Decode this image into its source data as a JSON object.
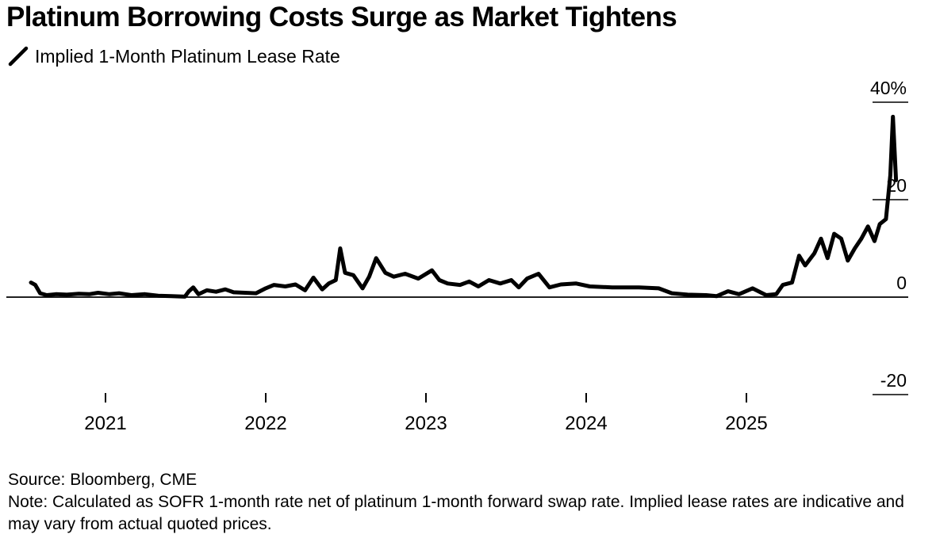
{
  "title": "Platinum Borrowing Costs Surge as Market Tightens",
  "footer": {
    "source": "Source: Bloomberg, CME",
    "note": "Note: Calculated as SOFR 1-month rate net of platinum 1-month forward swap rate. Implied lease rates are indicative and may vary from actual quoted prices."
  },
  "colors": {
    "line": "#000000",
    "axis": "#000000",
    "background": "#ffffff"
  },
  "chart_data": {
    "type": "line",
    "title": "Platinum Borrowing Costs Surge as Market Tightens",
    "series": [
      {
        "name": "Implied 1-Month Platinum Lease Rate",
        "points": [
          [
            "2020-07-15",
            3.0
          ],
          [
            "2020-07-25",
            2.5
          ],
          [
            "2020-08-05",
            0.8
          ],
          [
            "2020-08-20",
            0.4
          ],
          [
            "2020-09-10",
            0.6
          ],
          [
            "2020-10-05",
            0.5
          ],
          [
            "2020-11-01",
            0.7
          ],
          [
            "2020-11-25",
            0.6
          ],
          [
            "2020-12-15",
            0.9
          ],
          [
            "2021-01-10",
            0.6
          ],
          [
            "2021-02-01",
            0.8
          ],
          [
            "2021-03-01",
            0.4
          ],
          [
            "2021-04-01",
            0.6
          ],
          [
            "2021-05-01",
            0.3
          ],
          [
            "2021-06-01",
            0.2
          ],
          [
            "2021-07-01",
            0.1
          ],
          [
            "2021-07-10",
            1.2
          ],
          [
            "2021-07-20",
            2.0
          ],
          [
            "2021-08-01",
            0.6
          ],
          [
            "2021-08-20",
            1.4
          ],
          [
            "2021-09-10",
            1.1
          ],
          [
            "2021-10-01",
            1.6
          ],
          [
            "2021-10-20",
            1.0
          ],
          [
            "2021-11-15",
            0.9
          ],
          [
            "2021-12-10",
            0.8
          ],
          [
            "2022-01-01",
            1.8
          ],
          [
            "2022-01-20",
            2.5
          ],
          [
            "2022-02-15",
            2.2
          ],
          [
            "2022-03-10",
            2.6
          ],
          [
            "2022-04-01",
            1.4
          ],
          [
            "2022-04-20",
            4.0
          ],
          [
            "2022-05-10",
            1.6
          ],
          [
            "2022-05-25",
            2.8
          ],
          [
            "2022-06-10",
            3.5
          ],
          [
            "2022-06-20",
            10.0
          ],
          [
            "2022-07-01",
            5.0
          ],
          [
            "2022-07-20",
            4.5
          ],
          [
            "2022-08-10",
            1.8
          ],
          [
            "2022-08-25",
            4.2
          ],
          [
            "2022-09-10",
            8.0
          ],
          [
            "2022-10-01",
            5.0
          ],
          [
            "2022-10-20",
            4.2
          ],
          [
            "2022-11-15",
            4.8
          ],
          [
            "2022-12-15",
            3.8
          ],
          [
            "2023-01-15",
            5.5
          ],
          [
            "2023-02-01",
            3.5
          ],
          [
            "2023-02-20",
            2.8
          ],
          [
            "2023-03-20",
            2.5
          ],
          [
            "2023-04-10",
            3.2
          ],
          [
            "2023-05-01",
            2.2
          ],
          [
            "2023-05-25",
            3.5
          ],
          [
            "2023-06-20",
            2.8
          ],
          [
            "2023-07-15",
            3.5
          ],
          [
            "2023-08-01",
            2.0
          ],
          [
            "2023-08-20",
            3.8
          ],
          [
            "2023-09-15",
            4.8
          ],
          [
            "2023-10-10",
            2.0
          ],
          [
            "2023-11-05",
            2.6
          ],
          [
            "2023-12-10",
            2.8
          ],
          [
            "2024-01-10",
            2.2
          ],
          [
            "2024-03-01",
            2.0
          ],
          [
            "2024-05-01",
            2.0
          ],
          [
            "2024-06-15",
            1.8
          ],
          [
            "2024-07-15",
            0.8
          ],
          [
            "2024-08-20",
            0.5
          ],
          [
            "2024-10-01",
            0.4
          ],
          [
            "2024-10-25",
            0.2
          ],
          [
            "2024-11-20",
            1.2
          ],
          [
            "2024-12-15",
            0.6
          ],
          [
            "2025-01-15",
            1.8
          ],
          [
            "2025-02-15",
            0.4
          ],
          [
            "2025-03-10",
            0.6
          ],
          [
            "2025-03-25",
            2.5
          ],
          [
            "2025-04-15",
            3.0
          ],
          [
            "2025-05-01",
            8.5
          ],
          [
            "2025-05-15",
            6.5
          ],
          [
            "2025-06-05",
            9.0
          ],
          [
            "2025-06-20",
            12.0
          ],
          [
            "2025-07-05",
            8.0
          ],
          [
            "2025-07-20",
            13.0
          ],
          [
            "2025-08-05",
            12.0
          ],
          [
            "2025-08-20",
            7.5
          ],
          [
            "2025-09-05",
            10.0
          ],
          [
            "2025-09-20",
            12.0
          ],
          [
            "2025-10-05",
            14.5
          ],
          [
            "2025-10-20",
            11.5
          ],
          [
            "2025-11-01",
            15.0
          ],
          [
            "2025-11-15",
            16.0
          ],
          [
            "2025-11-25",
            25.0
          ],
          [
            "2025-12-01",
            37.0
          ],
          [
            "2025-12-08",
            24.0
          ]
        ]
      }
    ],
    "x_axis": {
      "type": "date",
      "tick_labels": [
        "2021",
        "2022",
        "2023",
        "2024",
        "2025"
      ]
    },
    "y_axis": {
      "ticks": [
        -20,
        0,
        20,
        40
      ],
      "tick_labels": [
        "-20",
        "0",
        "20",
        "40%"
      ],
      "ylim": [
        -20,
        40
      ]
    },
    "grid": false,
    "legend": "top-left"
  }
}
